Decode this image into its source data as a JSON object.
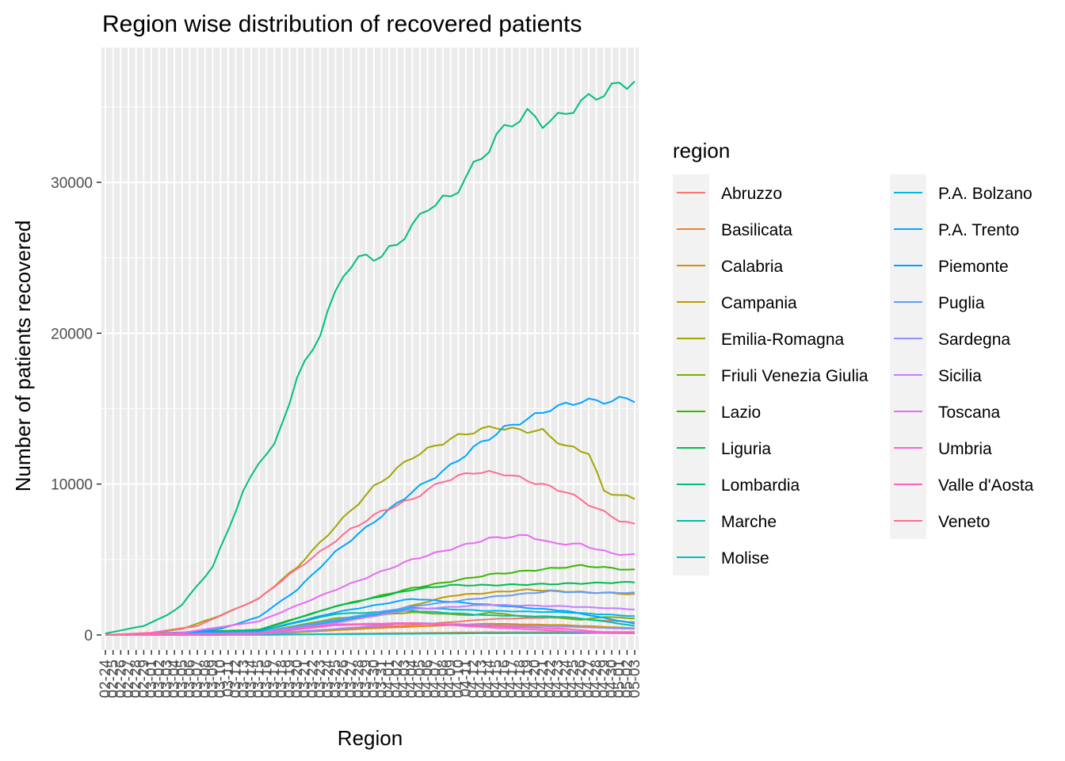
{
  "chart_data": {
    "type": "line",
    "title": "Region wise distribution of recovered patients",
    "xlabel": "Region",
    "ylabel": "Number of patients recovered",
    "y_ticks": [
      0,
      10000,
      20000,
      30000
    ],
    "y_tick_labels": [
      "0",
      "10000",
      "20000",
      "30000"
    ],
    "ylim": [
      -200,
      39000
    ],
    "grid": true,
    "legend_title": "region",
    "legend_position": "right",
    "x": [
      "02-24",
      "02-25",
      "02-26",
      "02-27",
      "02-28",
      "02-29",
      "03-01",
      "03-02",
      "03-03",
      "03-04",
      "03-05",
      "03-06",
      "03-07",
      "03-08",
      "03-09",
      "03-10",
      "03-11",
      "03-12",
      "03-13",
      "03-14",
      "03-15",
      "03-16",
      "03-17",
      "03-18",
      "03-19",
      "03-20",
      "03-21",
      "03-22",
      "03-23",
      "03-24",
      "03-25",
      "03-26",
      "03-27",
      "03-28",
      "03-29",
      "03-30",
      "03-31",
      "04-01",
      "04-02",
      "04-03",
      "04-04",
      "04-05",
      "04-06",
      "04-07",
      "04-08",
      "04-09",
      "04-10",
      "04-11",
      "04-12",
      "04-13",
      "04-14",
      "04-15",
      "04-16",
      "04-17",
      "04-18",
      "04-19",
      "04-20",
      "04-21",
      "04-22",
      "04-23",
      "04-24",
      "04-25",
      "04-26",
      "04-27",
      "04-28",
      "04-29",
      "04-30",
      "05-01",
      "05-02",
      "05-03"
    ],
    "series": [
      {
        "name": "Abruzzo",
        "color": "#F8766D",
        "keys": [
          [
            0,
            0
          ],
          [
            20,
            60
          ],
          [
            40,
            650
          ],
          [
            50,
            1050
          ],
          [
            58,
            1150
          ],
          [
            69,
            850
          ]
        ]
      },
      {
        "name": "Basilicata",
        "color": "#EA8331",
        "keys": [
          [
            0,
            0
          ],
          [
            20,
            10
          ],
          [
            35,
            100
          ],
          [
            50,
            180
          ],
          [
            69,
            200
          ]
        ]
      },
      {
        "name": "Calabria",
        "color": "#D89000",
        "keys": [
          [
            0,
            0
          ],
          [
            20,
            40
          ],
          [
            35,
            450
          ],
          [
            50,
            750
          ],
          [
            60,
            650
          ],
          [
            69,
            450
          ]
        ]
      },
      {
        "name": "Campania",
        "color": "#C09B00",
        "keys": [
          [
            0,
            0
          ],
          [
            20,
            180
          ],
          [
            35,
            1300
          ],
          [
            45,
            2600
          ],
          [
            55,
            3000
          ],
          [
            69,
            2700
          ]
        ]
      },
      {
        "name": "Emilia-Romagna",
        "color": "#A3A500",
        "keys": [
          [
            0,
            0
          ],
          [
            5,
            60
          ],
          [
            10,
            400
          ],
          [
            15,
            1300
          ],
          [
            20,
            2400
          ],
          [
            25,
            4500
          ],
          [
            30,
            7200
          ],
          [
            35,
            9800
          ],
          [
            40,
            11800
          ],
          [
            45,
            13000
          ],
          [
            48,
            13500
          ],
          [
            51,
            13800
          ],
          [
            53,
            13600
          ],
          [
            57,
            13500
          ],
          [
            60,
            12500
          ],
          [
            63,
            12100
          ],
          [
            65,
            9500
          ],
          [
            67,
            9300
          ],
          [
            69,
            9000
          ]
        ]
      },
      {
        "name": "Friuli Venezia Giulia",
        "color": "#7CAE00",
        "keys": [
          [
            0,
            0
          ],
          [
            20,
            160
          ],
          [
            30,
            1100
          ],
          [
            40,
            1500
          ],
          [
            48,
            1300
          ],
          [
            50,
            1500
          ],
          [
            55,
            1200
          ],
          [
            58,
            1200
          ],
          [
            62,
            1000
          ],
          [
            65,
            1200
          ],
          [
            69,
            1100
          ]
        ]
      },
      {
        "name": "Lazio",
        "color": "#39B600",
        "keys": [
          [
            0,
            0
          ],
          [
            20,
            300
          ],
          [
            30,
            1900
          ],
          [
            40,
            3100
          ],
          [
            50,
            4000
          ],
          [
            60,
            4500
          ],
          [
            62,
            4600
          ],
          [
            69,
            4300
          ]
        ]
      },
      {
        "name": "Liguria",
        "color": "#00BB4E",
        "keys": [
          [
            0,
            0
          ],
          [
            20,
            350
          ],
          [
            30,
            1900
          ],
          [
            40,
            3000
          ],
          [
            45,
            3300
          ],
          [
            50,
            3300
          ],
          [
            60,
            3400
          ],
          [
            69,
            3500
          ]
        ]
      },
      {
        "name": "Lombardia",
        "color": "#00BF7D",
        "keys": [
          [
            0,
            100
          ],
          [
            5,
            600
          ],
          [
            8,
            1300
          ],
          [
            10,
            2000
          ],
          [
            12,
            3300
          ],
          [
            14,
            4500
          ],
          [
            16,
            7000
          ],
          [
            18,
            9500
          ],
          [
            20,
            11500
          ],
          [
            22,
            12500
          ],
          [
            25,
            17000
          ],
          [
            28,
            20000
          ],
          [
            31,
            24000
          ],
          [
            34,
            25200
          ],
          [
            36,
            25000
          ],
          [
            40,
            27000
          ],
          [
            42,
            28400
          ],
          [
            45,
            29000
          ],
          [
            48,
            31000
          ],
          [
            51,
            33000
          ],
          [
            53,
            34000
          ],
          [
            55,
            34500
          ],
          [
            57,
            34000
          ],
          [
            59,
            34200
          ],
          [
            61,
            35000
          ],
          [
            63,
            35500
          ],
          [
            65,
            36000
          ],
          [
            69,
            36800
          ]
        ]
      },
      {
        "name": "Marche",
        "color": "#00C1A3",
        "keys": [
          [
            0,
            0
          ],
          [
            20,
            250
          ],
          [
            30,
            1400
          ],
          [
            40,
            1600
          ],
          [
            50,
            1300
          ],
          [
            60,
            1200
          ],
          [
            65,
            900
          ],
          [
            69,
            600
          ]
        ]
      },
      {
        "name": "Molise",
        "color": "#00BFC4",
        "keys": [
          [
            0,
            0
          ],
          [
            20,
            10
          ],
          [
            35,
            60
          ],
          [
            50,
            110
          ],
          [
            69,
            130
          ]
        ]
      },
      {
        "name": "P.A. Bolzano",
        "color": "#00B8E5",
        "keys": [
          [
            0,
            0
          ],
          [
            20,
            120
          ],
          [
            30,
            900
          ],
          [
            40,
            1800
          ],
          [
            50,
            1600
          ],
          [
            60,
            1500
          ],
          [
            69,
            1250
          ]
        ]
      },
      {
        "name": "P.A. Trento",
        "color": "#00A9FF",
        "keys": [
          [
            0,
            0
          ],
          [
            20,
            250
          ],
          [
            30,
            1500
          ],
          [
            40,
            2400
          ],
          [
            50,
            2000
          ],
          [
            60,
            1600
          ],
          [
            69,
            750
          ]
        ]
      },
      {
        "name": "Piemonte",
        "color": "#00A5FF",
        "keys": [
          [
            0,
            0
          ],
          [
            10,
            100
          ],
          [
            15,
            400
          ],
          [
            20,
            1200
          ],
          [
            25,
            3000
          ],
          [
            30,
            5500
          ],
          [
            35,
            7500
          ],
          [
            40,
            9500
          ],
          [
            45,
            11200
          ],
          [
            48,
            12400
          ],
          [
            52,
            13700
          ],
          [
            55,
            14300
          ],
          [
            58,
            15000
          ],
          [
            62,
            15500
          ],
          [
            66,
            15500
          ],
          [
            68,
            15700
          ],
          [
            69,
            15600
          ]
        ]
      },
      {
        "name": "Puglia",
        "color": "#619CFF",
        "keys": [
          [
            0,
            0
          ],
          [
            20,
            150
          ],
          [
            30,
            1000
          ],
          [
            40,
            1900
          ],
          [
            50,
            2500
          ],
          [
            58,
            2900
          ],
          [
            63,
            2800
          ],
          [
            69,
            2800
          ]
        ]
      },
      {
        "name": "Sardegna",
        "color": "#9590FF",
        "keys": [
          [
            0,
            0
          ],
          [
            20,
            60
          ],
          [
            30,
            400
          ],
          [
            40,
            800
          ],
          [
            50,
            650
          ],
          [
            60,
            550
          ],
          [
            69,
            400
          ]
        ]
      },
      {
        "name": "Sicilia",
        "color": "#C77CFF",
        "keys": [
          [
            0,
            0
          ],
          [
            20,
            120
          ],
          [
            30,
            800
          ],
          [
            40,
            1700
          ],
          [
            50,
            2000
          ],
          [
            60,
            1900
          ],
          [
            69,
            1700
          ]
        ]
      },
      {
        "name": "Toscana",
        "color": "#E76BF3",
        "keys": [
          [
            0,
            0
          ],
          [
            10,
            150
          ],
          [
            20,
            900
          ],
          [
            30,
            3000
          ],
          [
            40,
            5000
          ],
          [
            45,
            5700
          ],
          [
            50,
            6400
          ],
          [
            55,
            6600
          ],
          [
            58,
            6100
          ],
          [
            62,
            6000
          ],
          [
            66,
            5400
          ],
          [
            69,
            5300
          ]
        ]
      },
      {
        "name": "Umbria",
        "color": "#FA62DB",
        "keys": [
          [
            0,
            0
          ],
          [
            20,
            80
          ],
          [
            30,
            700
          ],
          [
            40,
            800
          ],
          [
            50,
            500
          ],
          [
            60,
            250
          ],
          [
            65,
            120
          ],
          [
            69,
            100
          ]
        ]
      },
      {
        "name": "Valle d'Aosta",
        "color": "#FF62BC",
        "keys": [
          [
            0,
            0
          ],
          [
            20,
            80
          ],
          [
            30,
            650
          ],
          [
            40,
            750
          ],
          [
            50,
            600
          ],
          [
            60,
            400
          ],
          [
            65,
            180
          ],
          [
            69,
            130
          ]
        ]
      },
      {
        "name": "Veneto",
        "color": "#FF6C91",
        "keys": [
          [
            0,
            0
          ],
          [
            6,
            150
          ],
          [
            12,
            600
          ],
          [
            16,
            1500
          ],
          [
            20,
            2400
          ],
          [
            24,
            4000
          ],
          [
            28,
            5500
          ],
          [
            32,
            7000
          ],
          [
            36,
            8200
          ],
          [
            40,
            9000
          ],
          [
            44,
            10200
          ],
          [
            48,
            10800
          ],
          [
            52,
            10700
          ],
          [
            56,
            10100
          ],
          [
            60,
            9500
          ],
          [
            64,
            8400
          ],
          [
            67,
            7600
          ],
          [
            69,
            7300
          ]
        ]
      }
    ]
  }
}
